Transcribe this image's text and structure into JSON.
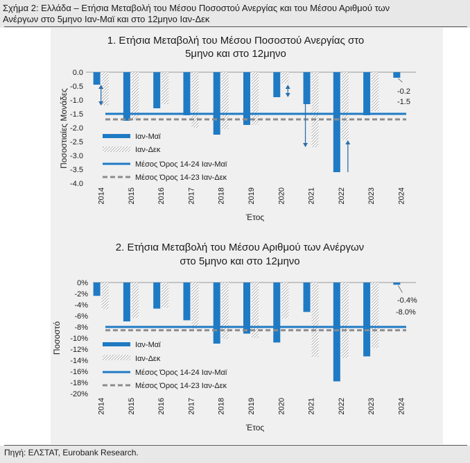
{
  "figure": {
    "header_line1": "Σχήμα 2: Ελλάδα – Ετήσια Μεταβολή του Μέσου Ποσοστού Ανεργίας και του Μέσου Αριθμού των",
    "header_line2": "Ανέργων στο 5μηνο Ιαν-Μαϊ και στο 12μηνο Ιαν-Δεκ",
    "source": "Πηγή: ΕΛΣΤΑΤ, Eurobank Research."
  },
  "colors": {
    "blue": "#1f7ac4",
    "gray": "#8c8c8c",
    "panel": "#f0f0f0"
  },
  "chart_data": [
    {
      "type": "bar",
      "title_line1": "1. Ετήσια Μεταβολή του Μέσου Ποσοστού Ανεργίας στο",
      "title_line2": "5μηνο και στο 12μηνο",
      "xlabel": "Έτος",
      "ylabel": "Ποσοστιαίες Μονάδες",
      "ylim": [
        -4.0,
        0.0
      ],
      "ytick_values": [
        0.0,
        -0.5,
        -1.0,
        -1.5,
        -2.0,
        -2.5,
        -3.0,
        -3.5,
        -4.0
      ],
      "ytick_labels": [
        "0.0",
        "-0.5",
        "-1.0",
        "-1.5",
        "-2.0",
        "-2.5",
        "-3.0",
        "-3.5",
        "-4.0"
      ],
      "categories": [
        "2014",
        "2015",
        "2016",
        "2017",
        "2018",
        "2019",
        "2020",
        "2021",
        "2022",
        "2023",
        "2024"
      ],
      "series": [
        {
          "name": "Ιαν-Μαϊ",
          "values": [
            -0.45,
            -1.75,
            -1.3,
            -1.55,
            -2.25,
            -1.9,
            -0.9,
            -1.15,
            -3.6,
            -1.55,
            -0.2
          ]
        },
        {
          "name": "Ιαν-Δεκ",
          "values": [
            -1.2,
            -1.7,
            -1.15,
            -2.0,
            -2.05,
            -1.9,
            -0.4,
            -2.7,
            -2.45,
            -1.4,
            null
          ]
        }
      ],
      "reference_lines": [
        {
          "name": "Μέσος Όρος 14-24 Ιαν-Μαϊ",
          "value": -1.5
        },
        {
          "name": "Μέσος Όρος 14-23 Ιαν-Δεκ",
          "value": -1.7
        }
      ],
      "annotations": [
        "-0.2",
        "-1.5"
      ]
    },
    {
      "type": "bar",
      "title_line1": "2. Ετήσια Μεταβολή του Μέσου Αριθμού των Ανέργων",
      "title_line2": "στο 5μηνο και στο 12μηνο",
      "xlabel": "Έτος",
      "ylabel": "Ποσοστό",
      "ylim": [
        -20,
        0
      ],
      "ytick_values": [
        0,
        -2,
        -4,
        -6,
        -8,
        -10,
        -12,
        -14,
        -16,
        -18,
        -20
      ],
      "ytick_labels": [
        "0%",
        "-2%",
        "-4%",
        "-6%",
        "-8%",
        "-10%",
        "-12%",
        "-14%",
        "-16%",
        "-18%",
        "-20%"
      ],
      "categories": [
        "2014",
        "2015",
        "2016",
        "2017",
        "2018",
        "2019",
        "2020",
        "2021",
        "2022",
        "2023",
        "2024"
      ],
      "series": [
        {
          "name": "Ιαν-Μαϊ",
          "values": [
            -2.4,
            -7.0,
            -4.7,
            -6.8,
            -11.0,
            -9.2,
            -10.8,
            -5.3,
            -17.8,
            -13.3,
            -0.4
          ]
        },
        {
          "name": "Ιαν-Δεκ",
          "values": [
            -4.8,
            -6.4,
            -4.5,
            -8.3,
            -10.2,
            -10.0,
            -6.5,
            -13.4,
            -13.6,
            -11.8,
            null
          ]
        }
      ],
      "reference_lines": [
        {
          "name": "Μέσος Όρος 14-24 Ιαν-Μαϊ",
          "value": -8.0
        },
        {
          "name": "Μέσος Όρος 14-23 Ιαν-Δεκ",
          "value": -8.6
        }
      ],
      "annotations": [
        "-0.4%",
        "-8.0%"
      ]
    }
  ]
}
